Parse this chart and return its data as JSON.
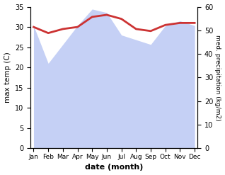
{
  "months": [
    "Jan",
    "Feb",
    "Mar",
    "Apr",
    "May",
    "Jun",
    "Jul",
    "Aug",
    "Sep",
    "Oct",
    "Nov",
    "Dec"
  ],
  "temp_max": [
    30.0,
    28.5,
    29.5,
    30.0,
    32.5,
    33.0,
    32.0,
    29.5,
    29.0,
    30.5,
    31.0,
    31.0
  ],
  "precip": [
    52.0,
    36.0,
    44.0,
    52.0,
    59.0,
    57.5,
    48.0,
    46.0,
    44.0,
    52.0,
    54.0,
    52.0
  ],
  "temp_color": "#cc3333",
  "precip_fill_color": "#c5d0f5",
  "title": "",
  "xlabel": "date (month)",
  "ylabel_left": "max temp (C)",
  "ylabel_right": "med. precipitation (kg/m2)",
  "ylim_left": [
    0,
    35
  ],
  "ylim_right": [
    0,
    60
  ],
  "yticks_left": [
    0,
    5,
    10,
    15,
    20,
    25,
    30,
    35
  ],
  "yticks_right": [
    0,
    10,
    20,
    30,
    40,
    50,
    60
  ],
  "temp_linewidth": 2.0,
  "bg_color": "#ffffff"
}
